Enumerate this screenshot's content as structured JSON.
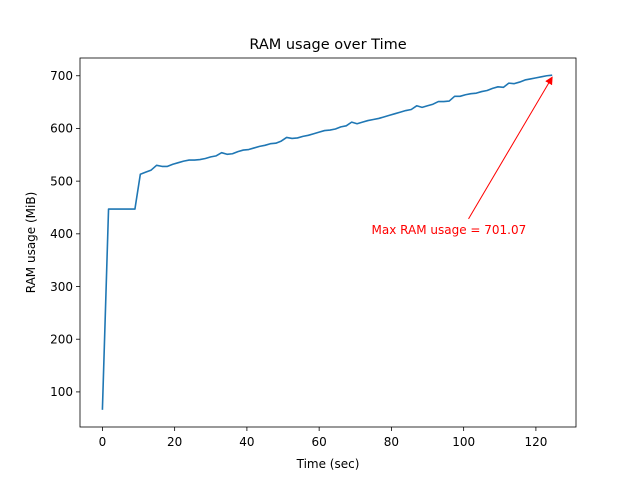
{
  "chart_data": {
    "type": "line",
    "title": "RAM usage over Time",
    "xlabel": "Time (sec)",
    "ylabel": "RAM usage (MiB)",
    "xlim": [
      -6.2,
      131.1
    ],
    "ylim": [
      33.4,
      733.7
    ],
    "xticks": [
      0,
      20,
      40,
      60,
      80,
      100,
      120
    ],
    "yticks": [
      100,
      200,
      300,
      400,
      500,
      600,
      700
    ],
    "grid": false,
    "series": [
      {
        "color": "#1f77b4",
        "x": [
          0,
          1,
          1.7,
          3,
          5,
          7,
          9,
          10.5,
          12,
          13.5,
          15,
          16.5,
          18,
          19.5,
          21,
          22.5,
          24,
          25.5,
          27,
          28.5,
          30,
          31.5,
          33,
          34.5,
          36,
          37.5,
          39,
          40.5,
          42,
          43.5,
          45,
          46.5,
          48,
          49.5,
          51,
          52.5,
          54,
          55.5,
          57,
          58.5,
          60,
          61.5,
          63,
          64.5,
          66,
          67.5,
          69,
          70.5,
          72,
          73.5,
          75,
          76.5,
          78,
          79.5,
          81,
          82.5,
          84,
          85.5,
          87,
          88.5,
          90,
          91.5,
          93,
          94.5,
          96,
          97.5,
          99,
          100.5,
          102,
          103.5,
          105,
          106.5,
          108,
          109.5,
          111,
          112.5,
          114,
          115.5,
          117,
          118.5,
          120,
          121.5,
          123,
          124.5
        ],
        "y": [
          66,
          290,
          447,
          447,
          447,
          447,
          447,
          513,
          517,
          521,
          530,
          528,
          528,
          532,
          535,
          538,
          540,
          540,
          541,
          543,
          546,
          548,
          554,
          551,
          552,
          556,
          559,
          560,
          563,
          566,
          568,
          571,
          572,
          576,
          583,
          581,
          582,
          585,
          587,
          590,
          593,
          596,
          597,
          599,
          603,
          605,
          612,
          609,
          612,
          615,
          617,
          619,
          622,
          625,
          628,
          631,
          634,
          636,
          643,
          640,
          643,
          646,
          651,
          651,
          652,
          661,
          661,
          664,
          666,
          667,
          670,
          672,
          676,
          679,
          678,
          686,
          685,
          688,
          692,
          694,
          696,
          698,
          700,
          701.07
        ]
      }
    ],
    "annotation": {
      "text": "Max RAM usage = 701.07",
      "xy": [
        124.5,
        701.07
      ],
      "xytext": [
        74.5,
        400
      ]
    }
  }
}
